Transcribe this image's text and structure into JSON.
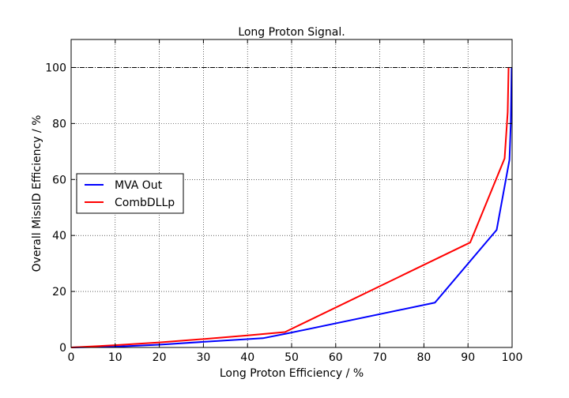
{
  "chart_data": {
    "type": "line",
    "title": "Long Proton Signal.",
    "xlabel": "Long Proton Efficiency / %",
    "ylabel": "Overall MissID Efficiency / %",
    "xlim": [
      0,
      100
    ],
    "ylim": [
      0,
      110
    ],
    "xticks": [
      "0",
      "10",
      "20",
      "30",
      "40",
      "50",
      "60",
      "70",
      "80",
      "90",
      "100"
    ],
    "yticks": [
      "0",
      "20",
      "40",
      "60",
      "80",
      "100"
    ],
    "grid": true,
    "legend_position": "center-left",
    "reference_line": {
      "y": 100,
      "style": "dash-dot",
      "color": "#000000"
    },
    "series": [
      {
        "name": "MVA Out",
        "color": "#0000ff",
        "points": [
          [
            0,
            0
          ],
          [
            10,
            0.3
          ],
          [
            20,
            1.0
          ],
          [
            30,
            2.0
          ],
          [
            43.5,
            3.3
          ],
          [
            49,
            5.0
          ],
          [
            82.5,
            16.0
          ],
          [
            96.5,
            42.0
          ],
          [
            99.4,
            67.0
          ],
          [
            99.7,
            80.0
          ],
          [
            99.9,
            100.0
          ]
        ]
      },
      {
        "name": "CombDLLp",
        "color": "#ff0000",
        "points": [
          [
            0,
            0
          ],
          [
            10,
            0.8
          ],
          [
            20,
            1.8
          ],
          [
            30,
            3.0
          ],
          [
            40,
            4.3
          ],
          [
            48.5,
            5.5
          ],
          [
            90.5,
            37.5
          ],
          [
            98.3,
            67.5
          ],
          [
            99.0,
            84.0
          ],
          [
            99.2,
            100.0
          ]
        ]
      }
    ]
  }
}
